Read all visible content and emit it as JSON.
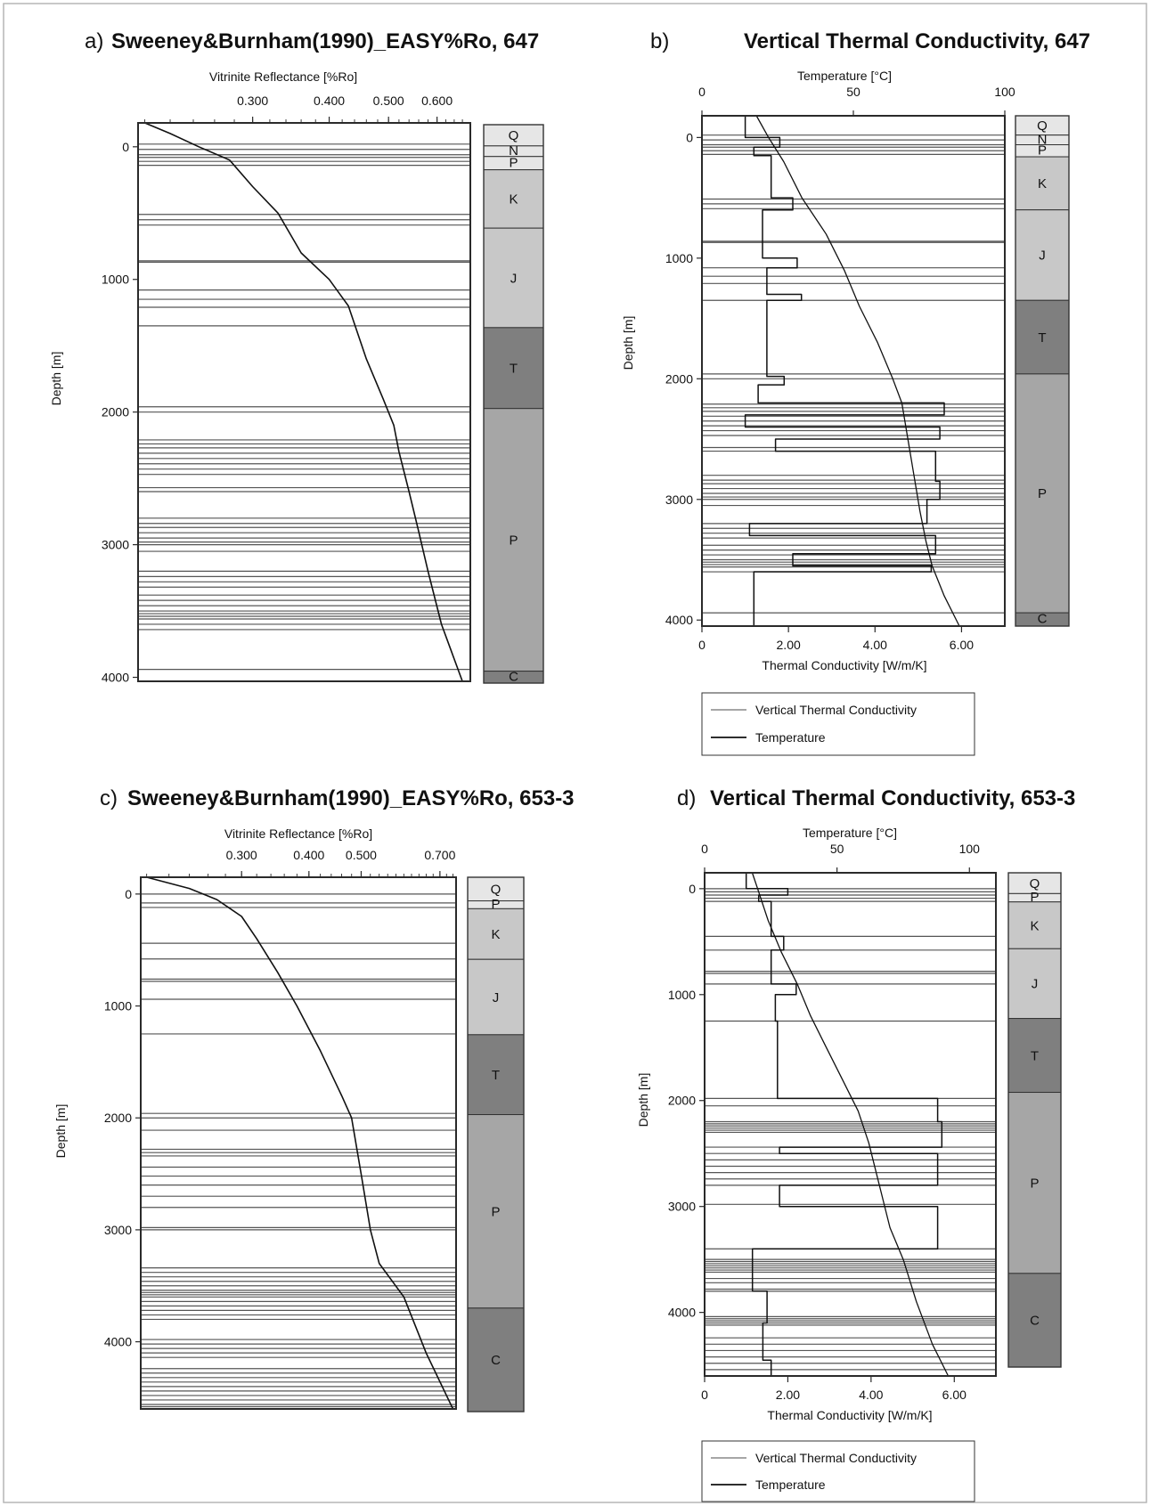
{
  "colors": {
    "frame": "#2a2a2a",
    "line": "#111111",
    "layer": "#555555",
    "unit_light": "#e6e6e6",
    "unit_mid": "#c8c8c8",
    "unit_p": "#a6a6a6",
    "unit_dark": "#7f7f7f"
  },
  "chart_data": [
    {
      "id": "a",
      "type": "line",
      "letter": "a)",
      "title": "Sweeney&Burnham(1990)_EASY%Ro, 647",
      "xlabel": "Vitrinite Reflectance [%Ro]",
      "ylabel": "Depth [m]",
      "xscale": "log",
      "xlim": [
        0.195,
        0.68
      ],
      "ylim": [
        4030,
        -180
      ],
      "xticks": [
        {
          "v": 0.3,
          "t": "0.300"
        },
        {
          "v": 0.4,
          "t": "0.400"
        },
        {
          "v": 0.5,
          "t": "0.500"
        },
        {
          "v": 0.6,
          "t": "0.600"
        }
      ],
      "yticks": [
        {
          "v": 0,
          "t": "0"
        },
        {
          "v": 1000,
          "t": "1000"
        },
        {
          "v": 2000,
          "t": "2000"
        },
        {
          "v": 3000,
          "t": "3000"
        },
        {
          "v": 4000,
          "t": "4000"
        }
      ],
      "series": [
        {
          "role": "ro",
          "x": [
            0.2,
            0.22,
            0.245,
            0.275,
            0.3,
            0.33,
            0.36,
            0.4,
            0.43,
            0.46,
            0.49,
            0.51,
            0.52,
            0.54,
            0.56,
            0.58,
            0.61,
            0.66
          ],
          "y": [
            -180,
            -100,
            0,
            100,
            300,
            500,
            800,
            1000,
            1200,
            1600,
            1900,
            2100,
            2300,
            2600,
            2900,
            3200,
            3600,
            4030
          ]
        }
      ],
      "layers": [
        -20,
        20,
        60,
        80,
        110,
        140,
        510,
        550,
        590,
        860,
        870,
        1080,
        1150,
        1210,
        1350,
        1960,
        2000,
        2210,
        2240,
        2270,
        2310,
        2350,
        2390,
        2430,
        2470,
        2570,
        2600,
        2800,
        2840,
        2870,
        2910,
        2950,
        2980,
        3000,
        3050,
        3200,
        3240,
        3280,
        3320,
        3380,
        3420,
        3460,
        3500,
        3520,
        3540,
        3560,
        3600,
        3640,
        3940
      ],
      "units": [
        {
          "label": "Q",
          "top": -180,
          "bottom": -20
        },
        {
          "label": "N",
          "top": -20,
          "bottom": 60
        },
        {
          "label": "P",
          "top": 60,
          "bottom": 160
        },
        {
          "label": "K",
          "top": 160,
          "bottom": 600
        },
        {
          "label": "J",
          "top": 600,
          "bottom": 1350
        },
        {
          "label": "T",
          "top": 1350,
          "bottom": 1960
        },
        {
          "label": "P",
          "top": 1960,
          "bottom": 3940
        },
        {
          "label": "C",
          "top": 3940,
          "bottom": 4030
        }
      ]
    },
    {
      "id": "b",
      "type": "line",
      "letter": "b)",
      "title": "Vertical Thermal Conductivity, 647",
      "xlabel": "Thermal Conductivity [W/m/K]",
      "x2label": "Temperature [°C]",
      "ylabel": "Depth [m]",
      "xlim": [
        0,
        7
      ],
      "x2lim": [
        0,
        100
      ],
      "ylim": [
        4050,
        -180
      ],
      "xticks": [
        {
          "v": 0,
          "t": "0"
        },
        {
          "v": 2,
          "t": "2.00"
        },
        {
          "v": 4,
          "t": "4.00"
        },
        {
          "v": 6,
          "t": "6.00"
        }
      ],
      "x2ticks": [
        {
          "v": 0,
          "t": "0"
        },
        {
          "v": 50,
          "t": "50"
        },
        {
          "v": 100,
          "t": "100"
        }
      ],
      "yticks": [
        {
          "v": 0,
          "t": "0"
        },
        {
          "v": 1000,
          "t": "1000"
        },
        {
          "v": 2000,
          "t": "2000"
        },
        {
          "v": 3000,
          "t": "3000"
        },
        {
          "v": 4000,
          "t": "4000"
        }
      ],
      "series": [
        {
          "name": "Vertical Thermal Conductivity",
          "x": [
            1.0,
            1.0,
            1.8,
            1.8,
            1.2,
            1.2,
            1.6,
            1.6,
            2.1,
            2.1,
            1.4,
            1.4,
            2.2,
            2.2,
            1.5,
            1.5,
            2.3,
            2.3,
            1.5,
            1.5,
            1.9,
            1.9,
            1.3,
            1.3,
            5.6,
            5.6,
            1.0,
            1.0,
            5.5,
            5.5,
            1.7,
            1.7,
            5.4,
            5.4,
            5.5,
            5.5,
            5.2,
            5.2,
            1.1,
            1.1,
            5.4,
            5.4,
            2.1,
            2.1,
            5.3,
            5.3,
            1.2,
            1.2
          ],
          "y": [
            -180,
            0,
            0,
            80,
            80,
            150,
            150,
            500,
            500,
            600,
            600,
            1000,
            1000,
            1080,
            1080,
            1300,
            1300,
            1350,
            1350,
            1980,
            1980,
            2050,
            2050,
            2200,
            2200,
            2300,
            2300,
            2400,
            2400,
            2500,
            2500,
            2600,
            2600,
            2850,
            2850,
            3000,
            3000,
            3200,
            3200,
            3300,
            3300,
            3450,
            3450,
            3550,
            3550,
            3600,
            3600,
            4050
          ]
        },
        {
          "name": "Temperature",
          "axis": "x2",
          "x": [
            18,
            22,
            27,
            33,
            41,
            47,
            52,
            58,
            63,
            66,
            68,
            70,
            72,
            74,
            76,
            80,
            85
          ],
          "y": [
            -180,
            0,
            200,
            500,
            800,
            1100,
            1400,
            1700,
            2000,
            2200,
            2500,
            2800,
            3100,
            3350,
            3550,
            3800,
            4050
          ]
        }
      ],
      "layers": [
        -20,
        20,
        60,
        80,
        110,
        140,
        510,
        550,
        590,
        860,
        870,
        1080,
        1150,
        1210,
        1350,
        1960,
        2000,
        2210,
        2240,
        2270,
        2310,
        2350,
        2390,
        2430,
        2470,
        2570,
        2600,
        2800,
        2840,
        2870,
        2910,
        2950,
        2980,
        3000,
        3050,
        3200,
        3240,
        3280,
        3320,
        3380,
        3420,
        3460,
        3500,
        3520,
        3540,
        3560,
        3600,
        3940
      ],
      "units": [
        {
          "label": "Q",
          "top": -180,
          "bottom": -20
        },
        {
          "label": "N",
          "top": -20,
          "bottom": 60
        },
        {
          "label": "P",
          "top": 60,
          "bottom": 160
        },
        {
          "label": "K",
          "top": 160,
          "bottom": 600
        },
        {
          "label": "J",
          "top": 600,
          "bottom": 1350
        },
        {
          "label": "T",
          "top": 1350,
          "bottom": 1960
        },
        {
          "label": "P",
          "top": 1960,
          "bottom": 3940
        },
        {
          "label": "C",
          "top": 3940,
          "bottom": 4050
        }
      ],
      "legend": [
        "Vertical Thermal Conductivity",
        "Temperature"
      ]
    },
    {
      "id": "c",
      "type": "line",
      "letter": "c)",
      "title": "Sweeney&Burnham(1990)_EASY%Ro, 653-3",
      "xlabel": "Vitrinite Reflectance [%Ro]",
      "ylabel": "Depth [m]",
      "xscale": "log",
      "xlim": [
        0.195,
        0.75
      ],
      "ylim": [
        4600,
        -150
      ],
      "xticks": [
        {
          "v": 0.3,
          "t": "0.300"
        },
        {
          "v": 0.4,
          "t": "0.400"
        },
        {
          "v": 0.5,
          "t": "0.500"
        },
        {
          "v": 0.7,
          "t": "0.700"
        }
      ],
      "yticks": [
        {
          "v": 0,
          "t": "0"
        },
        {
          "v": 1000,
          "t": "1000"
        },
        {
          "v": 2000,
          "t": "2000"
        },
        {
          "v": 3000,
          "t": "3000"
        },
        {
          "v": 4000,
          "t": "4000"
        }
      ],
      "series": [
        {
          "role": "ro",
          "x": [
            0.2,
            0.24,
            0.27,
            0.3,
            0.32,
            0.35,
            0.38,
            0.42,
            0.46,
            0.48,
            0.5,
            0.52,
            0.54,
            0.6,
            0.66,
            0.74
          ],
          "y": [
            -150,
            -50,
            50,
            200,
            400,
            700,
            1000,
            1400,
            1800,
            2000,
            2500,
            3000,
            3300,
            3600,
            4100,
            4600
          ]
        }
      ],
      "layers": [
        0,
        80,
        120,
        440,
        580,
        760,
        780,
        940,
        1250,
        1960,
        2000,
        2110,
        2280,
        2310,
        2340,
        2440,
        2520,
        2600,
        2700,
        2800,
        2980,
        3000,
        3340,
        3380,
        3420,
        3460,
        3500,
        3540,
        3560,
        3580,
        3600,
        3640,
        3680,
        3720,
        3760,
        3800,
        3980,
        4020,
        4060,
        4100,
        4140,
        4240,
        4280,
        4320,
        4360,
        4400,
        4440,
        4480,
        4520,
        4560,
        4580
      ],
      "units": [
        {
          "label": "Q",
          "top": -150,
          "bottom": 60
        },
        {
          "label": "P",
          "top": 60,
          "bottom": 130
        },
        {
          "label": "K",
          "top": 130,
          "bottom": 580
        },
        {
          "label": "J",
          "top": 580,
          "bottom": 1250
        },
        {
          "label": "T",
          "top": 1250,
          "bottom": 1960
        },
        {
          "label": "P",
          "top": 1960,
          "bottom": 3680
        },
        {
          "label": "C",
          "top": 3680,
          "bottom": 4600
        }
      ]
    },
    {
      "id": "d",
      "type": "line",
      "letter": "d)",
      "title": "Vertical Thermal Conductivity, 653-3",
      "xlabel": "Thermal Conductivity [W/m/K]",
      "x2label": "Temperature [°C]",
      "ylabel": "Depth [m]",
      "xlim": [
        0,
        7
      ],
      "x2lim": [
        0,
        110
      ],
      "ylim": [
        4600,
        -150
      ],
      "xticks": [
        {
          "v": 0,
          "t": "0"
        },
        {
          "v": 2,
          "t": "2.00"
        },
        {
          "v": 4,
          "t": "4.00"
        },
        {
          "v": 6,
          "t": "6.00"
        }
      ],
      "x2ticks": [
        {
          "v": 0,
          "t": "0"
        },
        {
          "v": 50,
          "t": "50"
        },
        {
          "v": 100,
          "t": "100"
        }
      ],
      "yticks": [
        {
          "v": 0,
          "t": "0"
        },
        {
          "v": 1000,
          "t": "1000"
        },
        {
          "v": 2000,
          "t": "2000"
        },
        {
          "v": 3000,
          "t": "3000"
        },
        {
          "v": 4000,
          "t": "4000"
        }
      ],
      "series": [
        {
          "name": "Vertical Thermal Conductivity",
          "x": [
            1.0,
            1.0,
            2.0,
            2.0,
            1.3,
            1.3,
            1.6,
            1.6,
            1.9,
            1.9,
            1.6,
            1.6,
            2.2,
            2.2,
            1.7,
            1.7,
            1.75,
            1.75,
            5.6,
            5.6,
            5.7,
            5.7,
            1.8,
            1.8,
            5.6,
            5.6,
            1.8,
            1.8,
            5.6,
            5.6,
            1.15,
            1.15,
            1.5,
            1.5,
            1.4,
            1.4,
            1.6,
            1.6
          ],
          "y": [
            -150,
            0,
            0,
            60,
            60,
            120,
            120,
            450,
            450,
            580,
            580,
            900,
            900,
            1000,
            1000,
            1250,
            1250,
            1980,
            1980,
            2200,
            2200,
            2440,
            2440,
            2500,
            2500,
            2800,
            2800,
            3000,
            3000,
            3400,
            3400,
            3800,
            3800,
            4100,
            4100,
            4450,
            4450,
            4600
          ]
        },
        {
          "name": "Temperature",
          "axis": "x2",
          "x": [
            18,
            20,
            24,
            29,
            35,
            40,
            46,
            52,
            58,
            62,
            66,
            70,
            75,
            80,
            86,
            92
          ],
          "y": [
            -150,
            0,
            300,
            600,
            900,
            1200,
            1500,
            1800,
            2100,
            2400,
            2800,
            3200,
            3500,
            3900,
            4300,
            4600
          ]
        }
      ],
      "layers": [
        0,
        30,
        60,
        90,
        120,
        450,
        580,
        780,
        800,
        900,
        1250,
        1980,
        2050,
        2200,
        2220,
        2240,
        2260,
        2280,
        2300,
        2440,
        2500,
        2560,
        2620,
        2680,
        2740,
        2800,
        2980,
        3400,
        3500,
        3520,
        3540,
        3560,
        3580,
        3600,
        3620,
        3680,
        3720,
        3780,
        3800,
        4040,
        4060,
        4080,
        4100,
        4120,
        4240,
        4300,
        4360,
        4420,
        4480,
        4540
      ],
      "units": [
        {
          "label": "Q",
          "top": -150,
          "bottom": 50
        },
        {
          "label": "P",
          "top": 50,
          "bottom": 130
        },
        {
          "label": "K",
          "top": 130,
          "bottom": 580
        },
        {
          "label": "J",
          "top": 580,
          "bottom": 1250
        },
        {
          "label": "T",
          "top": 1250,
          "bottom": 1960
        },
        {
          "label": "P",
          "top": 1960,
          "bottom": 3700
        },
        {
          "label": "C",
          "top": 3700,
          "bottom": 4600
        }
      ],
      "legend": [
        "Vertical Thermal Conductivity",
        "Temperature"
      ]
    }
  ]
}
